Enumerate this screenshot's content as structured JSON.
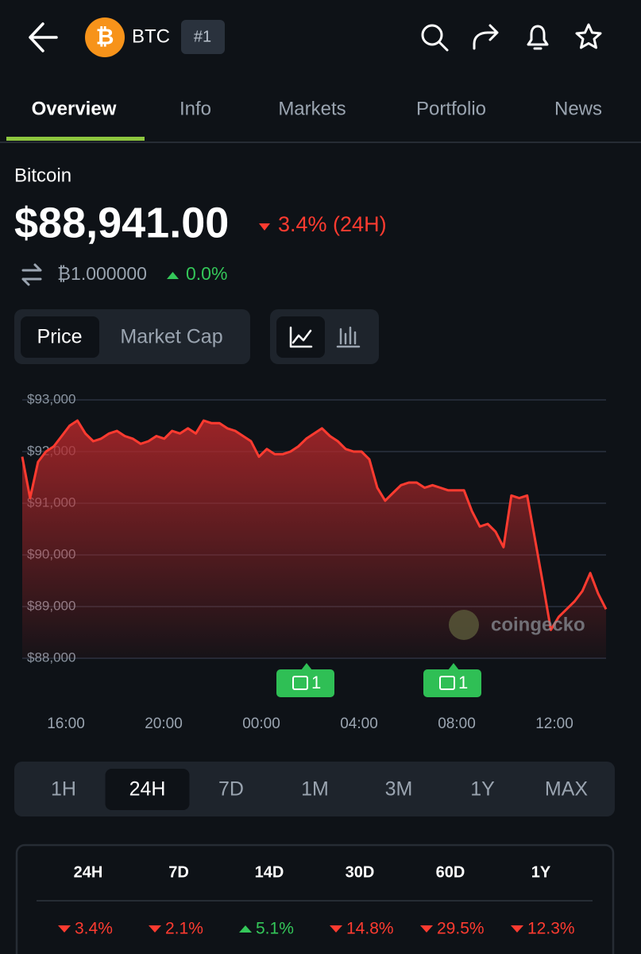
{
  "header": {
    "symbol": "BTC",
    "rank": "#1"
  },
  "tabs": {
    "items": [
      "Overview",
      "Info",
      "Markets",
      "Portfolio",
      "News"
    ],
    "active": 0
  },
  "coin": {
    "name": "Bitcoin",
    "price": "$88,941.00",
    "change": "3.4% (24H)",
    "btc_price": "₿1.000000",
    "btc_change": "0.0%"
  },
  "chart_toggle": {
    "items": [
      "Price",
      "Market Cap"
    ],
    "active": 0
  },
  "chart_data": {
    "type": "line",
    "color": "#ff3b30",
    "ylim": [
      88000,
      93000
    ],
    "yticks": [
      {
        "value": 93000,
        "label": "$93,000"
      },
      {
        "value": 92000,
        "label": "$92,000"
      },
      {
        "value": 91000,
        "label": "$91,000"
      },
      {
        "value": 90000,
        "label": "$90,000"
      },
      {
        "value": 89000,
        "label": "$89,000"
      },
      {
        "value": 88000,
        "label": "$88,000"
      }
    ],
    "grid": true,
    "time_labels": [
      "16:00",
      "20:00",
      "00:00",
      "04:00",
      "08:00",
      "12:00"
    ],
    "watermark": "coingecko",
    "news_markers": [
      "1",
      "1"
    ],
    "values": [
      91900,
      91100,
      91800,
      92000,
      92100,
      92300,
      92500,
      92600,
      92350,
      92200,
      92250,
      92350,
      92400,
      92300,
      92250,
      92150,
      92200,
      92300,
      92250,
      92400,
      92350,
      92450,
      92350,
      92600,
      92550,
      92550,
      92450,
      92400,
      92300,
      92200,
      91900,
      92050,
      91950,
      91950,
      92000,
      92100,
      92250,
      92350,
      92450,
      92300,
      92200,
      92050,
      92000,
      92000,
      91850,
      91300,
      91050,
      91200,
      91350,
      91400,
      91400,
      91300,
      91350,
      91300,
      91250,
      91250,
      91250,
      90850,
      90550,
      90600,
      90450,
      90150,
      91150,
      91100,
      91150,
      90300,
      89450,
      88550,
      88800,
      88950,
      89100,
      89300,
      89650,
      89250,
      88950
    ]
  },
  "ranges": {
    "items": [
      "1H",
      "24H",
      "7D",
      "1M",
      "3M",
      "1Y",
      "MAX"
    ],
    "active": 1
  },
  "performance": {
    "headers": [
      "24H",
      "7D",
      "14D",
      "30D",
      "60D",
      "1Y"
    ],
    "values": [
      "3.4%",
      "2.1%",
      "5.1%",
      "14.8%",
      "29.5%",
      "12.3%"
    ],
    "directions": [
      "down",
      "down",
      "up",
      "down",
      "down",
      "down"
    ]
  }
}
